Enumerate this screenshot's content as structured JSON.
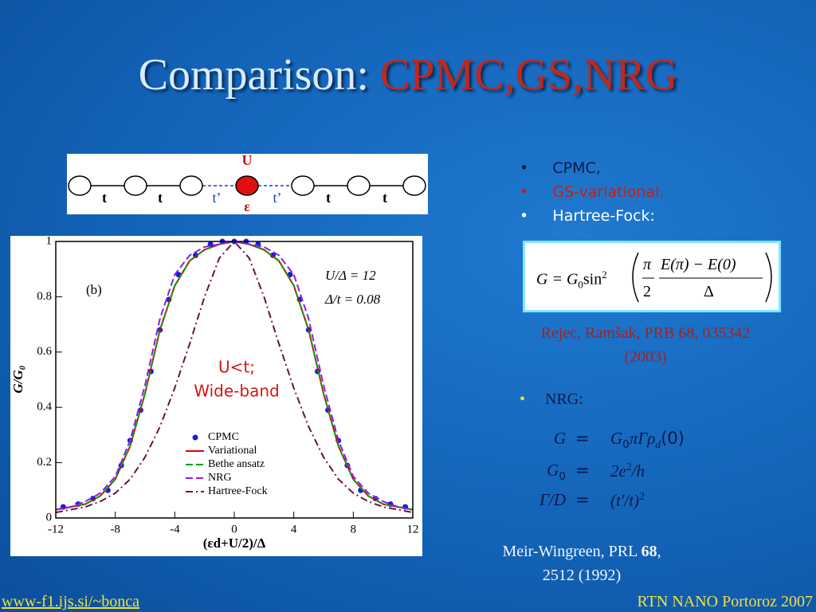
{
  "title": {
    "lead": "Comparison:",
    "highlight": "CPMC,GS,NRG"
  },
  "diagram": {
    "site_labels": [
      "U",
      "ε"
    ],
    "hoppings": [
      "t",
      "t",
      "t’",
      "t’",
      "t",
      "t"
    ]
  },
  "chart_data": {
    "type": "line",
    "xlabel": "(εd+U/2)/Δ",
    "ylabel": "G/G₀",
    "xlim": [
      -12,
      12
    ],
    "ylim": [
      0,
      1
    ],
    "xticks": [
      -12,
      -8,
      -4,
      0,
      4,
      8,
      12
    ],
    "yticks": [
      0,
      0.2,
      0.4,
      0.6,
      0.8,
      1
    ],
    "annotations": [
      "(b)",
      "U/Δ = 12",
      "Δ/t = 0.08"
    ],
    "overlay": [
      "U<t;",
      "Wide-band"
    ],
    "series": [
      {
        "name": "CPMC",
        "color": "#1a1ae6",
        "style": "points",
        "x": [
          -11.5,
          -10.5,
          -9.5,
          -8.5,
          -7.6,
          -7,
          -6.3,
          -5.6,
          -5,
          -4.4,
          -3.75,
          -2.6,
          -1.6,
          -0.8,
          0,
          0.8,
          1.6,
          2.6,
          3.75,
          4.4,
          5,
          5.6,
          6.3,
          7,
          7.6,
          8.5,
          9.5,
          10.5,
          11.5
        ],
        "values": [
          0.04,
          0.05,
          0.07,
          0.1,
          0.19,
          0.28,
          0.39,
          0.53,
          0.68,
          0.79,
          0.88,
          0.95,
          0.99,
          1,
          1,
          1,
          0.99,
          0.95,
          0.88,
          0.79,
          0.68,
          0.53,
          0.39,
          0.28,
          0.19,
          0.1,
          0.07,
          0.05,
          0.04
        ]
      },
      {
        "name": "Variational",
        "color": "#e00000",
        "style": "solid",
        "x": [
          -12,
          -11,
          -10,
          -9,
          -8,
          -7,
          -6,
          -5,
          -4,
          -3,
          -2,
          -1,
          0,
          1,
          2,
          3,
          4,
          5,
          6,
          7,
          8,
          9,
          10,
          11,
          12
        ],
        "values": [
          0.03,
          0.04,
          0.05,
          0.08,
          0.14,
          0.26,
          0.45,
          0.68,
          0.84,
          0.93,
          0.97,
          0.99,
          1,
          0.99,
          0.97,
          0.93,
          0.84,
          0.68,
          0.45,
          0.26,
          0.14,
          0.08,
          0.05,
          0.04,
          0.03
        ]
      },
      {
        "name": "Bethe ansatz",
        "color": "#00a000",
        "style": "dashed",
        "x": [
          -12,
          -11,
          -10,
          -9,
          -8,
          -7,
          -6,
          -5,
          -4,
          -3,
          -2,
          -1,
          0,
          1,
          2,
          3,
          4,
          5,
          6,
          7,
          8,
          9,
          10,
          11,
          12
        ],
        "values": [
          0.03,
          0.04,
          0.05,
          0.08,
          0.14,
          0.26,
          0.45,
          0.68,
          0.84,
          0.93,
          0.97,
          0.99,
          1,
          0.99,
          0.97,
          0.93,
          0.84,
          0.68,
          0.45,
          0.26,
          0.14,
          0.08,
          0.05,
          0.04,
          0.03
        ]
      },
      {
        "name": "NRG",
        "color": "#8a1ee6",
        "style": "dashed",
        "x": [
          -12,
          -11,
          -10,
          -9,
          -8,
          -7,
          -6,
          -5,
          -4,
          -3,
          -2,
          -1,
          0,
          1,
          2,
          3,
          4,
          5,
          6,
          7,
          8,
          9,
          10,
          11,
          12
        ],
        "values": [
          0.03,
          0.04,
          0.06,
          0.09,
          0.15,
          0.28,
          0.48,
          0.72,
          0.88,
          0.95,
          0.98,
          0.99,
          1,
          0.99,
          0.98,
          0.95,
          0.88,
          0.72,
          0.48,
          0.28,
          0.15,
          0.09,
          0.06,
          0.04,
          0.03
        ]
      },
      {
        "name": "Hartree-Fock",
        "color": "#701048",
        "style": "dashdot",
        "x": [
          -12,
          -11,
          -10,
          -9,
          -8,
          -7,
          -6,
          -5,
          -4,
          -3,
          -2,
          -1,
          0,
          1,
          2,
          3,
          4,
          5,
          6,
          7,
          8,
          9,
          10,
          11,
          12
        ],
        "values": [
          0.02,
          0.03,
          0.04,
          0.06,
          0.09,
          0.14,
          0.22,
          0.33,
          0.47,
          0.63,
          0.8,
          0.94,
          1,
          0.94,
          0.8,
          0.63,
          0.47,
          0.33,
          0.22,
          0.14,
          0.09,
          0.06,
          0.04,
          0.03,
          0.02
        ]
      }
    ]
  },
  "bullets": [
    "CPMC,",
    "GS-variational,",
    "Hartree-Fock:"
  ],
  "formula": {
    "lhs": "G = G",
    "lhs_sub": "0",
    "fn": "sin",
    "fn_sup": "2",
    "num1": "π",
    "den1": "2",
    "num2": "E(π) − E(0)",
    "den2": "Δ"
  },
  "citation1": [
    "Rejec, Ramšak, PRB 68, 035342",
    "(2003)"
  ],
  "nrg_bullet": "NRG:",
  "nrg_equations": [
    {
      "lhs": [
        "G"
      ],
      "rel": "=",
      "rhs": [
        "G",
        "0",
        "πΓρ",
        "d",
        "(0)"
      ]
    },
    {
      "lhs": [
        "G",
        "0"
      ],
      "rel": "=",
      "rhs": [
        "2e",
        "2",
        "/h"
      ]
    },
    {
      "lhs": [
        "Γ/D"
      ],
      "rel": "=",
      "rhs": [
        "(t′/t)",
        "2"
      ]
    }
  ],
  "citation2": {
    "text": "Meir-Wingreen, PRL ",
    "volume": "68",
    "sep": ",",
    "line2": "2512 (1992)"
  },
  "footer": {
    "left": "www-f1.ijs.si/~bonca",
    "right": "RTN NANO Portoroz 2007"
  }
}
